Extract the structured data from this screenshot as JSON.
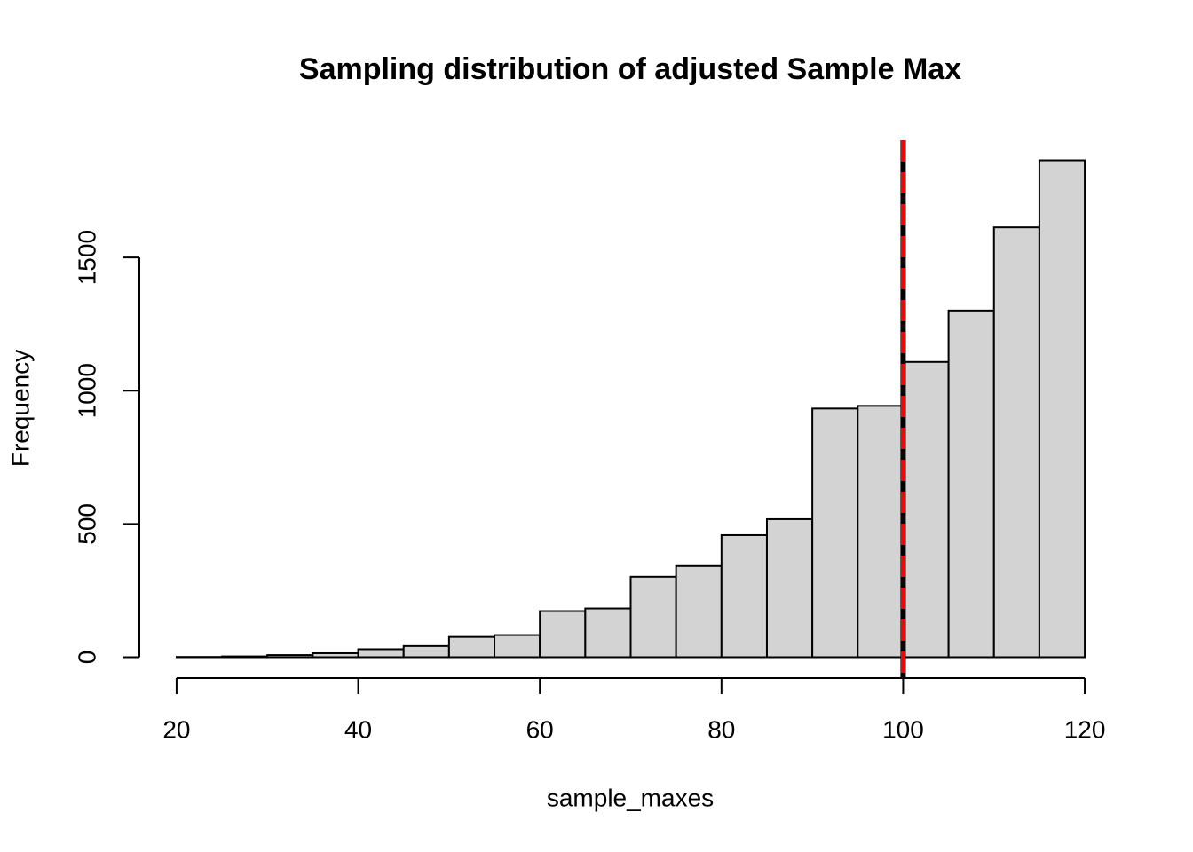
{
  "chart_data": {
    "type": "histogram",
    "title": "Sampling distribution of adjusted Sample Max",
    "x_label": "sample_maxes",
    "y_label": "Frequency",
    "bins": [
      20,
      25,
      30,
      35,
      40,
      45,
      50,
      55,
      60,
      65,
      70,
      75,
      80,
      85,
      90,
      95,
      100,
      105,
      110,
      115,
      120
    ],
    "counts": [
      1,
      3,
      8,
      15,
      30,
      42,
      76,
      83,
      173,
      183,
      302,
      342,
      458,
      518,
      933,
      943,
      1108,
      1301,
      1613,
      1865
    ],
    "color": "#d3d3d3",
    "edge_color": "#000000",
    "xlim": [
      16,
      124
    ],
    "ylim": [
      -75,
      1940
    ],
    "xticks": [
      20,
      40,
      60,
      80,
      100,
      120
    ],
    "yticks": [
      0,
      500,
      1000,
      1500
    ],
    "vlines": [
      {
        "x": 100,
        "color": "#000000",
        "dash": false
      },
      {
        "x": 100,
        "color": "#ff0000",
        "dash": true
      }
    ]
  }
}
